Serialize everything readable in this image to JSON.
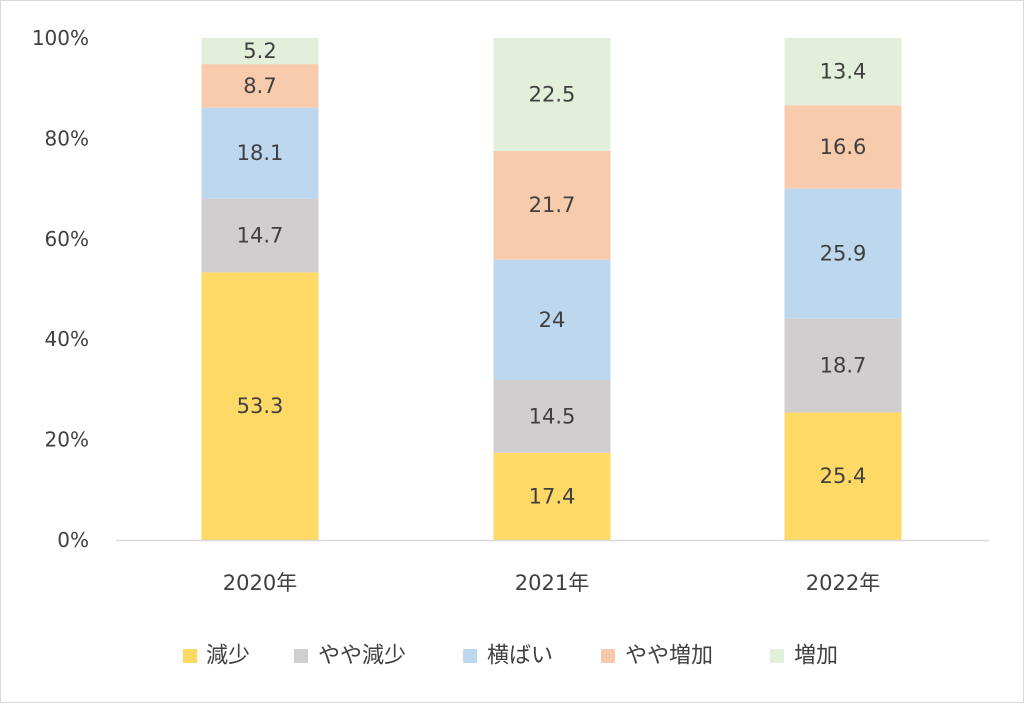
{
  "chart_data": {
    "type": "bar",
    "stacked": true,
    "normalized": true,
    "categories": [
      "2020年",
      "2021年",
      "2022年"
    ],
    "series": [
      {
        "name": "減少",
        "color": "#ffd966",
        "values": [
          53.3,
          17.4,
          25.4
        ]
      },
      {
        "name": "やや減少",
        "color": "#d0cece",
        "values": [
          14.7,
          14.5,
          18.7
        ]
      },
      {
        "name": "横ばい",
        "color": "#bdd7ee",
        "values": [
          18.1,
          24,
          25.9
        ]
      },
      {
        "name": "やや増加",
        "color": "#f8cbad",
        "values": [
          8.7,
          21.7,
          16.6
        ]
      },
      {
        "name": "増加",
        "color": "#e2efda",
        "values": [
          5.2,
          22.5,
          13.4
        ]
      }
    ],
    "yticks": [
      "0%",
      "20%",
      "40%",
      "60%",
      "80%",
      "100%"
    ],
    "ylim": [
      0,
      100
    ],
    "grid": false,
    "legend_position": "bottom",
    "data_label_color": "#404040",
    "axis_color": "#d9d9d9"
  }
}
